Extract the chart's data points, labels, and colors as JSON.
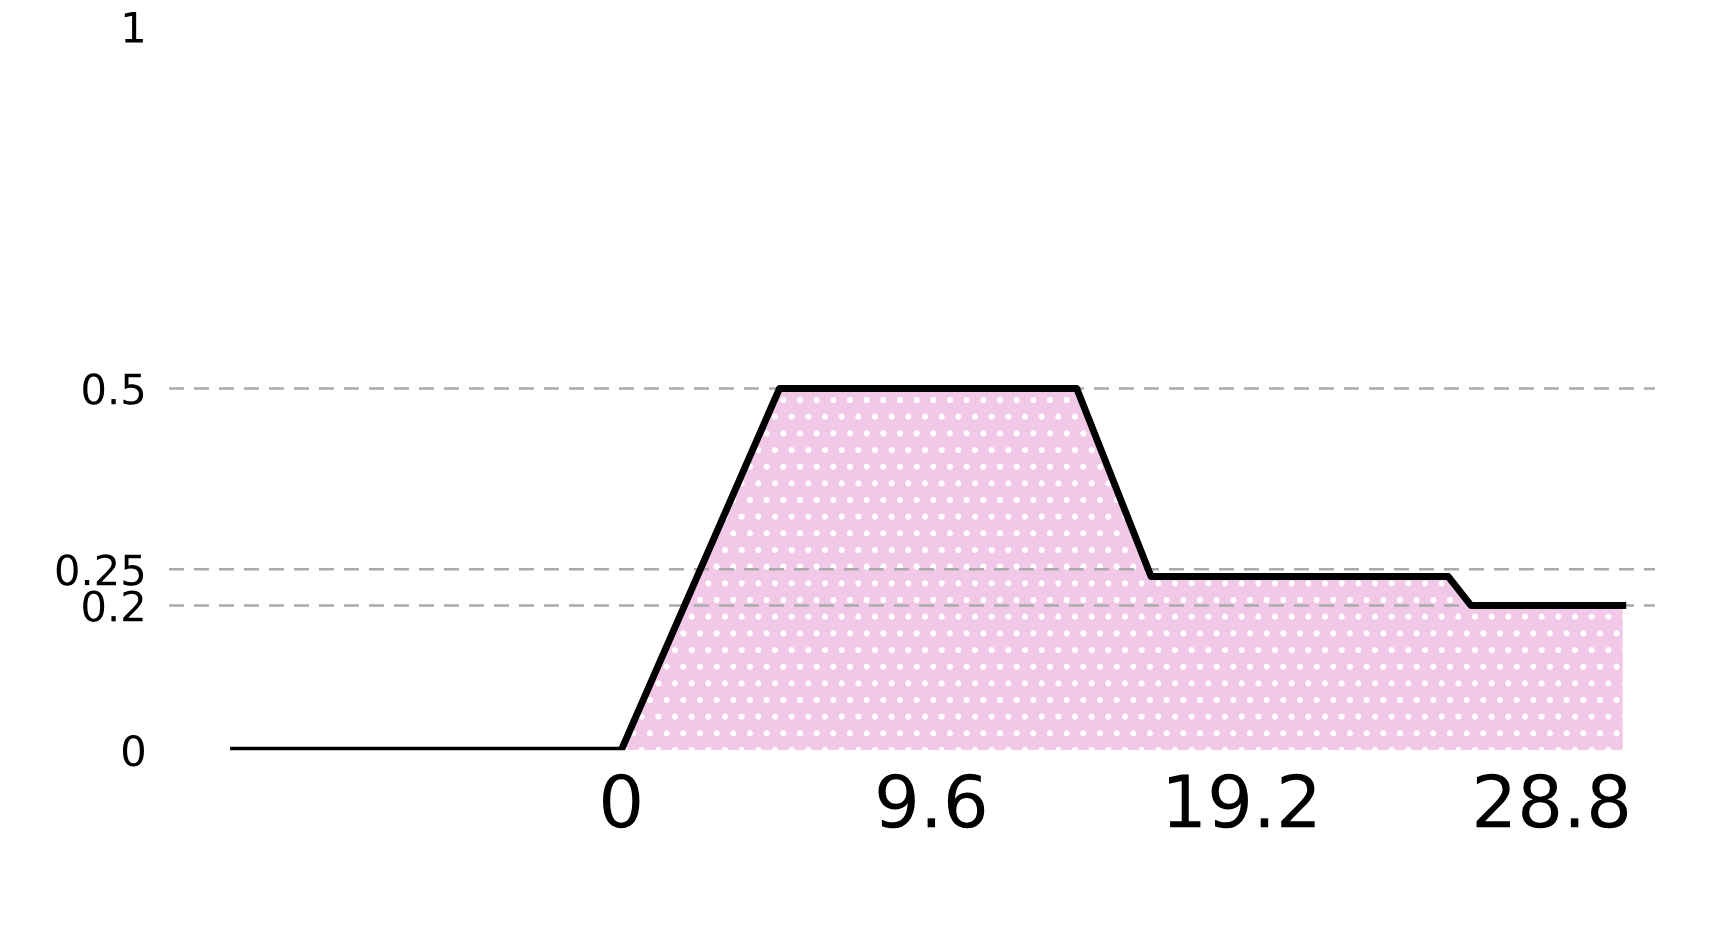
{
  "chart_data": {
    "type": "area",
    "x": [
      -12,
      0,
      4.9,
      14.1,
      16.4,
      25.6,
      26.3,
      31
    ],
    "series": [
      {
        "color": "#f2c8e8",
        "values": [
          0,
          0,
          0.5,
          0.5,
          0.24,
          0.24,
          0.2,
          0.2
        ]
      }
    ],
    "xlim": [
      -14,
      32
    ],
    "ylim": [
      0,
      1
    ],
    "xticks": [
      0,
      9.6,
      19.2,
      28.8
    ],
    "yticks": [
      0,
      0.2,
      0.25,
      0.5,
      1
    ],
    "grid": "y"
  }
}
